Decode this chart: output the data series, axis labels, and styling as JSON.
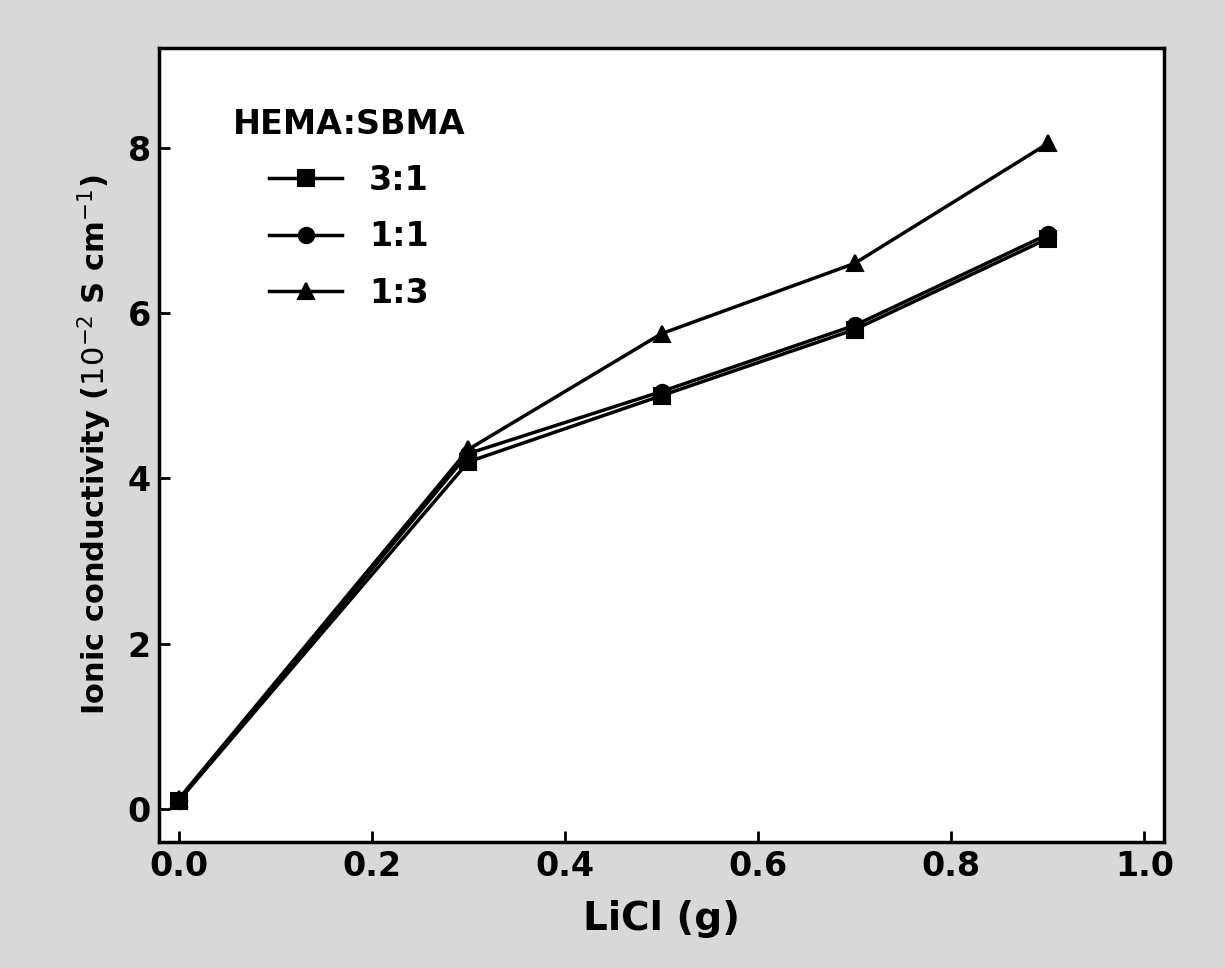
{
  "x": [
    0.0,
    0.3,
    0.5,
    0.7,
    0.9
  ],
  "series": {
    "3:1": {
      "y": [
        0.1,
        4.2,
        5.0,
        5.8,
        6.9
      ],
      "marker": "s",
      "markersize": 11,
      "label": "3:1"
    },
    "1:1": {
      "y": [
        0.1,
        4.3,
        5.05,
        5.85,
        6.95
      ],
      "marker": "o",
      "markersize": 11,
      "label": "1:1"
    },
    "1:3": {
      "y": [
        0.12,
        4.35,
        5.75,
        6.6,
        8.05
      ],
      "marker": "^",
      "markersize": 11,
      "label": "1:3"
    }
  },
  "xlabel": "LiCl (g)",
  "legend_title": "HEMA:SBMA",
  "xlim": [
    -0.02,
    1.02
  ],
  "ylim": [
    -0.4,
    9.2
  ],
  "xticks": [
    0.0,
    0.2,
    0.4,
    0.6,
    0.8,
    1.0
  ],
  "yticks": [
    0,
    2,
    4,
    6,
    8
  ],
  "line_color": "#000000",
  "line_width": 2.5,
  "background_color": "#ffffff",
  "outer_background": "#d8d8d8",
  "xlabel_fontsize": 28,
  "ylabel_fontsize": 22,
  "tick_fontsize": 24,
  "legend_fontsize": 24,
  "legend_title_fontsize": 24
}
